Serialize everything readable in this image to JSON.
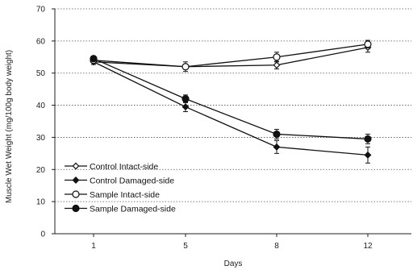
{
  "chart_data": {
    "type": "line",
    "title": "",
    "xlabel": "Days",
    "ylabel": "Muscle Wet Weight (mg/100g body weight)",
    "categories": [
      "1",
      "5",
      "8",
      "12"
    ],
    "ylim": [
      0,
      70
    ],
    "yticks": [
      0,
      10,
      20,
      30,
      40,
      50,
      60,
      70
    ],
    "grid": "horizontal dotted",
    "legend_position": "bottom-left",
    "series": [
      {
        "name": "Control Intact-side",
        "values": [
          53.5,
          52,
          52.5,
          58
        ],
        "errors": [
          0.8,
          0.8,
          1.2,
          1.5
        ],
        "marker": "diamond",
        "filled": false,
        "color": "#111111"
      },
      {
        "name": "Control Damaged-side",
        "values": [
          53.5,
          39.5,
          27,
          24.5
        ],
        "errors": [
          0.8,
          1.5,
          2,
          2.5
        ],
        "marker": "diamond",
        "filled": true,
        "color": "#111111"
      },
      {
        "name": "Sample Intact-side",
        "values": [
          54,
          52,
          55,
          59
        ],
        "errors": [
          0.8,
          1.5,
          1.5,
          1.2
        ],
        "marker": "circle",
        "filled": false,
        "color": "#111111"
      },
      {
        "name": "Sample Damaged-side",
        "values": [
          54.5,
          42,
          31,
          29.5
        ],
        "errors": [
          0.8,
          1.2,
          1.5,
          1.5
        ],
        "marker": "circle",
        "filled": true,
        "color": "#111111"
      }
    ]
  }
}
